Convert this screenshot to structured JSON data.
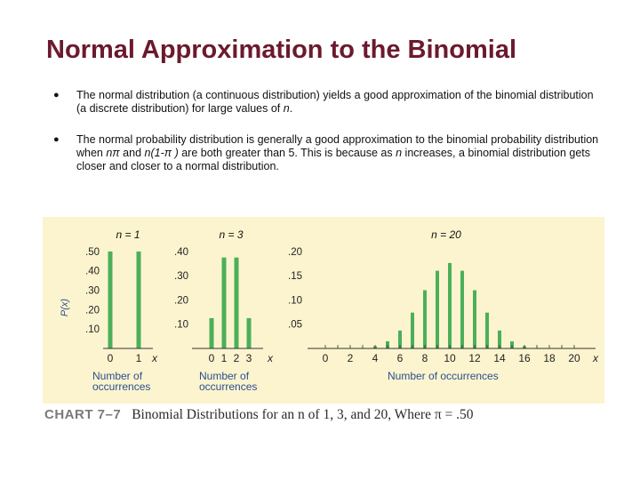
{
  "slide": {
    "title": "Normal Approximation to the Binomial",
    "bullet_symbol": "●",
    "bullet1": {
      "text_a": "The normal distribution (a continuous distribution) yields a good approximation of the binomial distribution (a discrete distribution) for large values of ",
      "var_n": "n",
      "text_b": "."
    },
    "bullet2": {
      "text_a": "The normal probability distribution is generally a good approximation to the binomial probability distribution when ",
      "n_pi": "nπ",
      "text_b": "  and ",
      "n_1_pi": "n(1-π )",
      "text_c": " are both greater than 5.  This is because as ",
      "var_n": "n",
      "text_d": " increases, a binomial distribution gets closer and closer to a normal distribution."
    }
  },
  "chart_caption": {
    "label": "CHART 7–7",
    "text": "Binomial Distributions for an n of 1, 3, and 20, Where π = .50"
  },
  "chart_data": [
    {
      "type": "bar",
      "panel_label": "n = 1",
      "ylabel": "P(x)",
      "xlabel": "Number of occurrences",
      "x_axis_symbol": "x",
      "x": [
        0,
        1
      ],
      "values": [
        0.5,
        0.5
      ],
      "yticks": [
        ".10",
        ".20",
        ".30",
        ".40",
        ".50"
      ],
      "ytick_values": [
        0.1,
        0.2,
        0.3,
        0.4,
        0.5
      ],
      "xticks": [
        "0",
        "1"
      ],
      "ylim": [
        0,
        0.55
      ]
    },
    {
      "type": "bar",
      "panel_label": "n = 3",
      "xlabel": "Number of occurrences",
      "x_axis_symbol": "x",
      "x": [
        0,
        1,
        2,
        3
      ],
      "values": [
        0.125,
        0.375,
        0.375,
        0.125
      ],
      "yticks": [
        ".10",
        ".20",
        ".30",
        ".40"
      ],
      "ytick_values": [
        0.1,
        0.2,
        0.3,
        0.4
      ],
      "xticks": [
        "0",
        "1",
        "2",
        "3"
      ],
      "ylim": [
        0,
        0.44
      ]
    },
    {
      "type": "bar",
      "panel_label": "n = 20",
      "xlabel": "Number of occurrences",
      "x_axis_symbol": "x",
      "x": [
        0,
        1,
        2,
        3,
        4,
        5,
        6,
        7,
        8,
        9,
        10,
        11,
        12,
        13,
        14,
        15,
        16,
        17,
        18,
        19,
        20
      ],
      "values": [
        1e-06,
        2e-05,
        0.0002,
        0.0011,
        0.0046,
        0.0148,
        0.037,
        0.0739,
        0.1201,
        0.1602,
        0.1762,
        0.1602,
        0.1201,
        0.0739,
        0.037,
        0.0148,
        0.0046,
        0.0011,
        0.0002,
        2e-05,
        1e-06
      ],
      "yticks": [
        ".05",
        ".10",
        ".15",
        ".20"
      ],
      "ytick_values": [
        0.05,
        0.1,
        0.15,
        0.2
      ],
      "xticks": [
        "0",
        "2",
        "4",
        "6",
        "8",
        "10",
        "12",
        "14",
        "16",
        "18",
        "20"
      ],
      "ylim": [
        0,
        0.22
      ]
    }
  ],
  "colors": {
    "title": "#6b1a2e",
    "bar": "#4caf5a",
    "panel": "#fcf4cf",
    "axis_label": "#2a4f8f"
  }
}
